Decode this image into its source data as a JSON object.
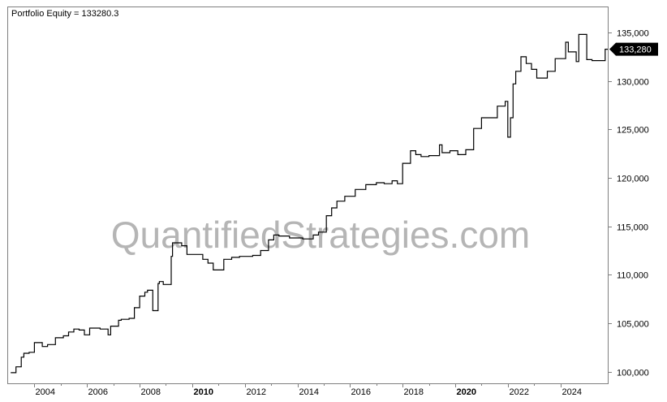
{
  "chart_data": {
    "type": "line",
    "title": "Portfolio Equity = 133280.3",
    "xlabel": "",
    "ylabel": "",
    "xlim": [
      2003.0,
      2025.8
    ],
    "ylim": [
      98800,
      137600
    ],
    "grid": false,
    "legend": "none",
    "y_ticks": [
      100000,
      105000,
      110000,
      115000,
      120000,
      125000,
      130000,
      135000
    ],
    "y_tick_labels": [
      "100,000",
      "105,000",
      "110,000",
      "115,000",
      "120,000",
      "125,000",
      "130,000",
      "135,000"
    ],
    "x_ticks": [
      2004,
      2006,
      2008,
      2010,
      2012,
      2014,
      2016,
      2018,
      2020,
      2022,
      2024
    ],
    "x_tick_labels": [
      "2004",
      "2006",
      "2008",
      "2010",
      "2012",
      "2014",
      "2016",
      "2018",
      "2020",
      "2022",
      "2024"
    ],
    "x_bold_labels": [
      "2010",
      "2020"
    ],
    "last_value_label": "133,280",
    "last_value": 133280,
    "series": [
      {
        "x": [
          2003.1,
          2003.3,
          2003.5,
          2003.6,
          2003.8,
          2004.0,
          2004.3,
          2004.5,
          2004.8,
          2005.1,
          2005.3,
          2005.5,
          2005.7,
          2005.9,
          2006.1,
          2006.2,
          2006.5,
          2006.8,
          2006.9,
          2007.2,
          2007.3,
          2007.6,
          2007.8,
          2008.0,
          2008.2,
          2008.3,
          2008.5,
          2008.7,
          2008.75,
          2008.9,
          2009.2,
          2009.25,
          2009.6,
          2009.8,
          2010.4,
          2010.6,
          2010.8,
          2011.2,
          2011.5,
          2011.8,
          2012.3,
          2012.6,
          2012.9,
          2013.1,
          2013.3,
          2013.7,
          2014.2,
          2014.6,
          2014.8,
          2015.1,
          2015.3,
          2015.5,
          2015.8,
          2016.2,
          2016.6,
          2017.0,
          2017.3,
          2017.6,
          2017.8,
          2018.0,
          2018.3,
          2018.5,
          2018.7,
          2019.0,
          2019.4,
          2019.5,
          2019.8,
          2020.1,
          2020.4,
          2020.7,
          2021.0,
          2021.3,
          2021.6,
          2021.9,
          2022.0,
          2022.1,
          2022.2,
          2022.3,
          2022.5,
          2022.7,
          2022.9,
          2023.1,
          2023.5,
          2023.8,
          2024.2,
          2024.3,
          2024.6,
          2024.7,
          2024.8,
          2025.0,
          2025.2,
          2025.7,
          2025.8
        ],
        "values": [
          99900,
          100500,
          101500,
          101900,
          102000,
          103000,
          102600,
          102800,
          103500,
          103700,
          104100,
          104400,
          104300,
          103800,
          104500,
          104500,
          104400,
          103800,
          104700,
          105300,
          105400,
          105500,
          106600,
          107800,
          108200,
          108400,
          106300,
          109100,
          109300,
          109000,
          111900,
          113300,
          113000,
          112100,
          111600,
          111200,
          110500,
          111600,
          111800,
          111900,
          112000,
          112500,
          113600,
          114100,
          114000,
          113800,
          113700,
          114100,
          114400,
          116100,
          116900,
          117600,
          118100,
          118800,
          119300,
          119500,
          119400,
          119700,
          119400,
          121500,
          122800,
          122400,
          122200,
          122300,
          123400,
          122600,
          122800,
          122400,
          122900,
          125100,
          126200,
          126200,
          127400,
          127900,
          124200,
          126200,
          129700,
          131000,
          132500,
          131800,
          131200,
          130300,
          131000,
          132300,
          134000,
          133000,
          132000,
          134800,
          134800,
          132200,
          132100,
          133280,
          133280
        ]
      }
    ]
  },
  "watermark": "QuantifiedStrategies.com",
  "colors": {
    "line": "#000000",
    "frame": "#7f7f7f",
    "badge": "#000000",
    "watermark": "#b5b5b5"
  }
}
